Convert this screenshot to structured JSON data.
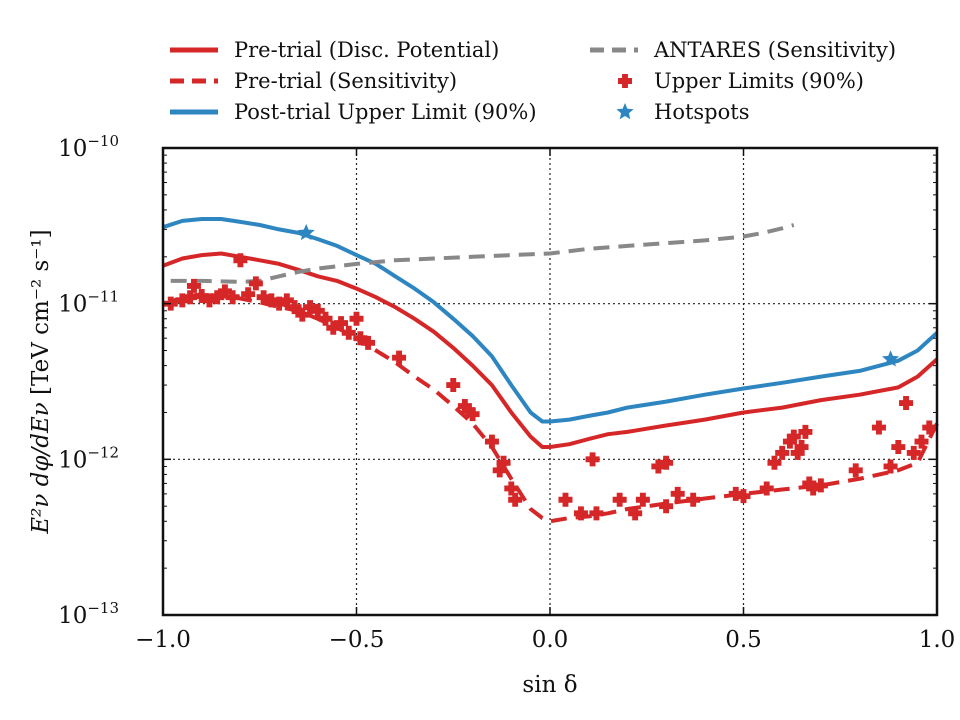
{
  "chart_data": {
    "type": "line",
    "xlabel": "sin δ",
    "ylabel": "[TeV cm⁻² s⁻¹]",
    "ylabel_math": "E²ν dφ/dEν",
    "xlim": [
      -1.0,
      1.0
    ],
    "ylim": [
      1e-13,
      1e-10
    ],
    "yscale": "log",
    "grid": "dotted",
    "legend_position": "top",
    "x_ticks": [
      {
        "value": -1.0,
        "label": "−1.0"
      },
      {
        "value": -0.5,
        "label": "−0.5"
      },
      {
        "value": 0.0,
        "label": "0.0"
      },
      {
        "value": 0.5,
        "label": "0.5"
      },
      {
        "value": 1.0,
        "label": "1.0"
      }
    ],
    "y_ticks": [
      {
        "value": 1e-13,
        "base": "10",
        "exp": "−13"
      },
      {
        "value": 1e-12,
        "base": "10",
        "exp": "−12"
      },
      {
        "value": 1e-11,
        "base": "10",
        "exp": "−11"
      },
      {
        "value": 1e-10,
        "base": "10",
        "exp": "−10"
      }
    ],
    "series": [
      {
        "name": "Pre-trial (Disc. Potential)",
        "color": "#d62728",
        "style": "solid",
        "x": [
          -1.0,
          -0.95,
          -0.9,
          -0.85,
          -0.8,
          -0.75,
          -0.7,
          -0.65,
          -0.6,
          -0.55,
          -0.5,
          -0.45,
          -0.4,
          -0.35,
          -0.3,
          -0.25,
          -0.2,
          -0.15,
          -0.1,
          -0.05,
          -0.02,
          0.0,
          0.05,
          0.1,
          0.15,
          0.2,
          0.3,
          0.4,
          0.5,
          0.6,
          0.7,
          0.8,
          0.9,
          0.95,
          1.0
        ],
        "y": [
          1.75e-11,
          1.95e-11,
          2.05e-11,
          2.1e-11,
          2e-11,
          1.9e-11,
          1.8e-11,
          1.65e-11,
          1.5e-11,
          1.4e-11,
          1.25e-11,
          1.1e-11,
          9.5e-12,
          8e-12,
          6.6e-12,
          5.2e-12,
          4e-12,
          3e-12,
          2e-12,
          1.4e-12,
          1.2e-12,
          1.2e-12,
          1.25e-12,
          1.35e-12,
          1.45e-12,
          1.5e-12,
          1.65e-12,
          1.8e-12,
          2e-12,
          2.15e-12,
          2.4e-12,
          2.6e-12,
          2.9e-12,
          3.4e-12,
          4.4e-12
        ]
      },
      {
        "name": "Pre-trial (Sensitivity)",
        "color": "#d62728",
        "style": "dashed",
        "x": [
          -1.0,
          -0.95,
          -0.9,
          -0.85,
          -0.8,
          -0.75,
          -0.7,
          -0.65,
          -0.6,
          -0.55,
          -0.5,
          -0.45,
          -0.4,
          -0.35,
          -0.3,
          -0.25,
          -0.2,
          -0.15,
          -0.1,
          -0.05,
          -0.02,
          0.0,
          0.05,
          0.1,
          0.15,
          0.2,
          0.3,
          0.4,
          0.5,
          0.6,
          0.7,
          0.8,
          0.9,
          0.95,
          1.0
        ],
        "y": [
          9.8e-12,
          1.1e-11,
          1.15e-11,
          1.12e-11,
          1.08e-11,
          1.02e-11,
          9.5e-12,
          9e-12,
          8e-12,
          7e-12,
          6e-12,
          5e-12,
          4.2e-12,
          3.4e-12,
          2.8e-12,
          2.2e-12,
          1.7e-12,
          1.2e-12,
          7.5e-13,
          4.8e-13,
          4.2e-13,
          4e-13,
          4.2e-13,
          4.3e-13,
          4.5e-13,
          4.8e-13,
          5.2e-13,
          5.6e-13,
          6e-13,
          6.4e-13,
          6.8e-13,
          7.5e-13,
          8.5e-13,
          9.5e-13,
          1.7e-12
        ]
      },
      {
        "name": "Post-trial Upper Limit (90%)",
        "color": "#2e86c1",
        "style": "solid",
        "x": [
          -1.0,
          -0.95,
          -0.9,
          -0.85,
          -0.8,
          -0.75,
          -0.7,
          -0.65,
          -0.6,
          -0.55,
          -0.5,
          -0.45,
          -0.4,
          -0.35,
          -0.3,
          -0.25,
          -0.2,
          -0.15,
          -0.1,
          -0.05,
          -0.02,
          0.0,
          0.05,
          0.1,
          0.15,
          0.2,
          0.3,
          0.4,
          0.5,
          0.6,
          0.7,
          0.8,
          0.9,
          0.95,
          1.0
        ],
        "y": [
          3.1e-11,
          3.4e-11,
          3.5e-11,
          3.5e-11,
          3.35e-11,
          3.2e-11,
          3e-11,
          2.85e-11,
          2.6e-11,
          2.35e-11,
          2.05e-11,
          1.8e-11,
          1.5e-11,
          1.25e-11,
          1.02e-11,
          8e-12,
          6.2e-12,
          4.6e-12,
          3e-12,
          2e-12,
          1.75e-12,
          1.75e-12,
          1.8e-12,
          1.9e-12,
          2e-12,
          2.15e-12,
          2.35e-12,
          2.6e-12,
          2.85e-12,
          3.1e-12,
          3.4e-12,
          3.7e-12,
          4.3e-12,
          5e-12,
          6.5e-12
        ]
      },
      {
        "name": "ANTARES (Sensitivity)",
        "color": "#888888",
        "style": "dashed",
        "x": [
          -0.98,
          -0.9,
          -0.8,
          -0.75,
          -0.7,
          -0.65,
          -0.6,
          -0.5,
          -0.4,
          -0.3,
          -0.2,
          -0.1,
          0.0,
          0.1,
          0.2,
          0.3,
          0.4,
          0.5,
          0.55,
          0.6,
          0.63
        ],
        "y": [
          1.4e-11,
          1.4e-11,
          1.38e-11,
          1.4e-11,
          1.5e-11,
          1.6e-11,
          1.68e-11,
          1.8e-11,
          1.9e-11,
          1.95e-11,
          2e-11,
          2.05e-11,
          2.1e-11,
          2.25e-11,
          2.35e-11,
          2.45e-11,
          2.55e-11,
          2.7e-11,
          2.85e-11,
          3.05e-11,
          3.2e-11
        ]
      }
    ],
    "upper_limits": {
      "name": "Upper Limits (90%)",
      "color": "#d62728",
      "points": [
        {
          "x": -0.98,
          "y": 1e-11
        },
        {
          "x": -0.95,
          "y": 1.05e-11
        },
        {
          "x": -0.93,
          "y": 1.1e-11
        },
        {
          "x": -0.92,
          "y": 1.3e-11
        },
        {
          "x": -0.9,
          "y": 1.12e-11
        },
        {
          "x": -0.88,
          "y": 1.05e-11
        },
        {
          "x": -0.86,
          "y": 1.1e-11
        },
        {
          "x": -0.84,
          "y": 1.2e-11
        },
        {
          "x": -0.82,
          "y": 1.1e-11
        },
        {
          "x": -0.8,
          "y": 1.9e-11
        },
        {
          "x": -0.78,
          "y": 1.15e-11
        },
        {
          "x": -0.76,
          "y": 1.35e-11
        },
        {
          "x": -0.74,
          "y": 1.1e-11
        },
        {
          "x": -0.72,
          "y": 1.05e-11
        },
        {
          "x": -0.7,
          "y": 1e-11
        },
        {
          "x": -0.68,
          "y": 1.05e-11
        },
        {
          "x": -0.66,
          "y": 9.5e-12
        },
        {
          "x": -0.64,
          "y": 8.5e-12
        },
        {
          "x": -0.62,
          "y": 9.5e-12
        },
        {
          "x": -0.6,
          "y": 9e-12
        },
        {
          "x": -0.58,
          "y": 8e-12
        },
        {
          "x": -0.56,
          "y": 7e-12
        },
        {
          "x": -0.54,
          "y": 7.5e-12
        },
        {
          "x": -0.52,
          "y": 6.5e-12
        },
        {
          "x": -0.5,
          "y": 8e-12
        },
        {
          "x": -0.49,
          "y": 6e-12
        },
        {
          "x": -0.47,
          "y": 5.6e-12
        },
        {
          "x": -0.39,
          "y": 4.5e-12
        },
        {
          "x": -0.25,
          "y": 3e-12
        },
        {
          "x": -0.22,
          "y": 2.2e-12
        },
        {
          "x": -0.21,
          "y": 2.05e-12
        },
        {
          "x": -0.2,
          "y": 1.95e-12
        },
        {
          "x": -0.15,
          "y": 1.3e-12
        },
        {
          "x": -0.13,
          "y": 8.5e-13
        },
        {
          "x": -0.12,
          "y": 9.5e-13
        },
        {
          "x": -0.1,
          "y": 6.5e-13
        },
        {
          "x": -0.09,
          "y": 5.5e-13
        },
        {
          "x": 0.04,
          "y": 5.5e-13
        },
        {
          "x": 0.08,
          "y": 4.5e-13
        },
        {
          "x": 0.11,
          "y": 1e-12
        },
        {
          "x": 0.12,
          "y": 4.5e-13
        },
        {
          "x": 0.18,
          "y": 5.5e-13
        },
        {
          "x": 0.22,
          "y": 4.5e-13
        },
        {
          "x": 0.24,
          "y": 5.5e-13
        },
        {
          "x": 0.28,
          "y": 9e-13
        },
        {
          "x": 0.3,
          "y": 9.5e-13
        },
        {
          "x": 0.3,
          "y": 5e-13
        },
        {
          "x": 0.33,
          "y": 6e-13
        },
        {
          "x": 0.37,
          "y": 5.5e-13
        },
        {
          "x": 0.48,
          "y": 6e-13
        },
        {
          "x": 0.5,
          "y": 5.8e-13
        },
        {
          "x": 0.56,
          "y": 6.5e-13
        },
        {
          "x": 0.58,
          "y": 9.5e-13
        },
        {
          "x": 0.6,
          "y": 1.1e-12
        },
        {
          "x": 0.62,
          "y": 1.3e-12
        },
        {
          "x": 0.63,
          "y": 1.4e-12
        },
        {
          "x": 0.64,
          "y": 1.1e-12
        },
        {
          "x": 0.65,
          "y": 1.2e-12
        },
        {
          "x": 0.66,
          "y": 1.5e-12
        },
        {
          "x": 0.67,
          "y": 7e-13
        },
        {
          "x": 0.68,
          "y": 6.5e-13
        },
        {
          "x": 0.7,
          "y": 6.8e-13
        },
        {
          "x": 0.79,
          "y": 8.5e-13
        },
        {
          "x": 0.85,
          "y": 1.6e-12
        },
        {
          "x": 0.88,
          "y": 9e-13
        },
        {
          "x": 0.9,
          "y": 1.2e-12
        },
        {
          "x": 0.92,
          "y": 2.3e-12
        },
        {
          "x": 0.94,
          "y": 1.1e-12
        },
        {
          "x": 0.96,
          "y": 1.3e-12
        },
        {
          "x": 0.98,
          "y": 1.6e-12
        }
      ]
    },
    "hotspots": {
      "name": "Hotspots",
      "color": "#2e86c1",
      "points": [
        {
          "x": -0.63,
          "y": 2.85e-11
        },
        {
          "x": 0.88,
          "y": 4.4e-12
        }
      ]
    },
    "legend": [
      {
        "label": "Pre-trial (Disc. Potential)",
        "kind": "line",
        "style": "solid",
        "color": "#d62728"
      },
      {
        "label": "Pre-trial (Sensitivity)",
        "kind": "line",
        "style": "dashed",
        "color": "#d62728"
      },
      {
        "label": "Post-trial Upper Limit (90%)",
        "kind": "line",
        "style": "solid",
        "color": "#2e86c1"
      },
      {
        "label": "ANTARES (Sensitivity)",
        "kind": "line",
        "style": "dashed",
        "color": "#888888"
      },
      {
        "label": "Upper Limits (90%)",
        "kind": "marker",
        "marker": "plus",
        "color": "#d62728"
      },
      {
        "label": "Hotspots",
        "kind": "marker",
        "marker": "star",
        "color": "#2e86c1"
      }
    ]
  }
}
